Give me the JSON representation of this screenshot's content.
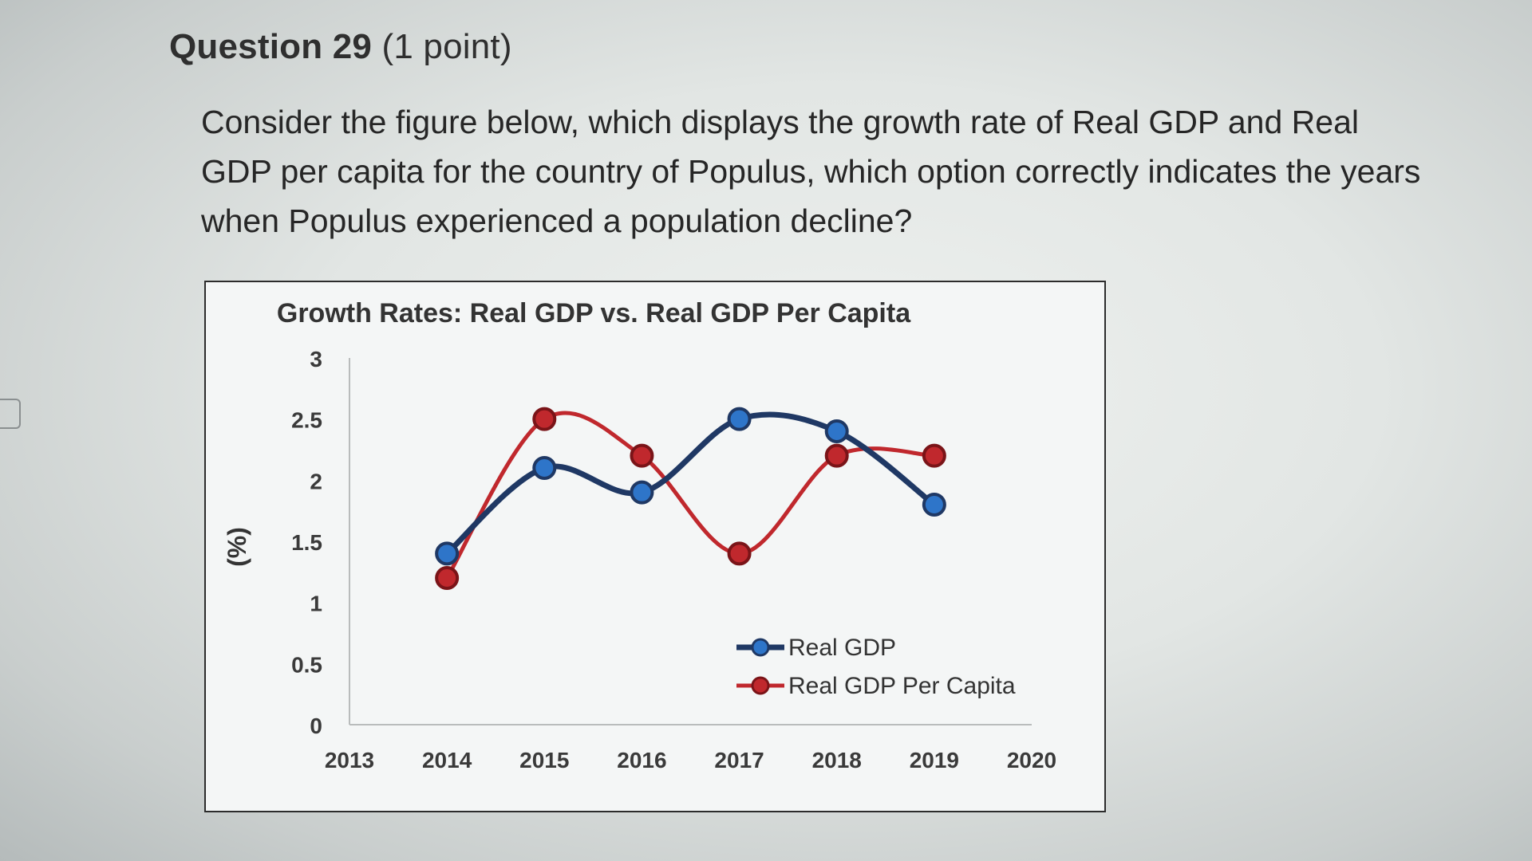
{
  "question": {
    "number_label": "Question 29",
    "points_label": "(1 point)",
    "text": "Consider the figure below, which displays the growth rate of Real GDP and Real GDP per capita for the country of Populus, which option correctly indicates the years when Populus experienced a population decline?"
  },
  "chart_data": {
    "type": "line",
    "title": "Growth Rates: Real GDP vs. Real GDP Per Capita",
    "xlabel": "",
    "ylabel": "(%)",
    "xlim": [
      2013,
      2020
    ],
    "ylim": [
      0,
      3
    ],
    "x_ticks": [
      "2013",
      "2014",
      "2015",
      "2016",
      "2017",
      "2018",
      "2019",
      "2020"
    ],
    "y_ticks": [
      "0",
      "0.5",
      "1",
      "1.5",
      "2",
      "2.5",
      "3"
    ],
    "legend_position": "bottom-right",
    "series": [
      {
        "name": "Real GDP",
        "color": "#1f3864",
        "x": [
          2014,
          2015,
          2016,
          2017,
          2018,
          2019
        ],
        "values": [
          1.4,
          2.1,
          1.9,
          2.5,
          2.4,
          1.8
        ]
      },
      {
        "name": "Real GDP Per Capita",
        "color": "#c0282d",
        "x": [
          2014,
          2015,
          2016,
          2017,
          2018,
          2019
        ],
        "values": [
          1.2,
          2.5,
          2.2,
          1.4,
          2.2,
          2.2
        ]
      }
    ]
  }
}
